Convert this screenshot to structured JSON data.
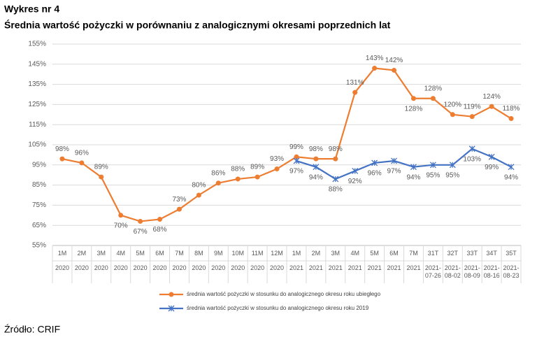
{
  "title": "Wykres nr 4",
  "subtitle": "Średnia wartość pożyczki w porównaniu z analogicznymi okresami poprzednich lat",
  "source": "Źródło: CRIF",
  "chart_data": {
    "type": "line",
    "categories": [
      "1M",
      "2M",
      "3M",
      "4M",
      "5M",
      "6M",
      "7M",
      "8M",
      "9M",
      "10M",
      "11M",
      "12M",
      "1M",
      "2M",
      "3M",
      "4M",
      "5M",
      "6M",
      "7M",
      "31T",
      "32T",
      "33T",
      "34T",
      "35T"
    ],
    "category_groups": [
      "2020",
      "2020",
      "2020",
      "2020",
      "2020",
      "2020",
      "2020",
      "2020",
      "2020",
      "2020",
      "2020",
      "2020",
      "2021",
      "2021",
      "2021",
      "2021",
      "2021",
      "2021",
      "2021",
      "2021-07-26",
      "2021-08-02",
      "2021-08-09",
      "2021-08-16",
      "2021-08-23"
    ],
    "series": [
      {
        "name": "średnia wartość pożyczki w stosunku do analogicznego okresu roku ubiegłego",
        "color": "#ed7d31",
        "marker": "circle",
        "values": [
          98,
          96,
          89,
          70,
          67,
          68,
          73,
          80,
          86,
          88,
          89,
          93,
          99,
          98,
          98,
          131,
          143,
          142,
          128,
          128,
          120,
          119,
          124,
          118
        ],
        "value_labels": [
          "98%",
          "96%",
          "89%",
          "70%",
          "67%",
          "68%",
          "73%",
          "80%",
          "86%",
          "88%",
          "89%",
          "93%",
          "99%",
          "98%",
          "98%",
          "131%",
          "143%",
          "142%",
          "128%",
          "128%",
          "120%",
          "119%",
          "124%",
          "118%"
        ]
      },
      {
        "name": "średnia wartość pożyczki w stosunku do analogicznego okresu roku 2019",
        "color": "#4472c4",
        "marker": "x",
        "values": [
          null,
          null,
          null,
          null,
          null,
          null,
          null,
          null,
          null,
          null,
          null,
          null,
          97,
          94,
          88,
          92,
          96,
          97,
          94,
          95,
          95,
          103,
          99,
          94
        ],
        "value_labels": [
          null,
          null,
          null,
          null,
          null,
          null,
          null,
          null,
          null,
          null,
          null,
          null,
          "97%",
          "94%",
          "88%",
          "92%",
          "96%",
          "97%",
          "94%",
          "95%",
          "95%",
          "103%",
          "99%",
          "94%"
        ]
      }
    ],
    "ylim": [
      55,
      155
    ],
    "yticks": [
      {
        "value": 55,
        "label": "55%"
      },
      {
        "value": 65,
        "label": "65%"
      },
      {
        "value": 75,
        "label": "75%"
      },
      {
        "value": 85,
        "label": "85%"
      },
      {
        "value": 95,
        "label": "95%"
      },
      {
        "value": 105,
        "label": "105%"
      },
      {
        "value": 115,
        "label": "115%"
      },
      {
        "value": 125,
        "label": "125%"
      },
      {
        "value": 135,
        "label": "135%"
      },
      {
        "value": 145,
        "label": "145%"
      },
      {
        "value": 155,
        "label": "155%"
      }
    ],
    "grid": true
  }
}
